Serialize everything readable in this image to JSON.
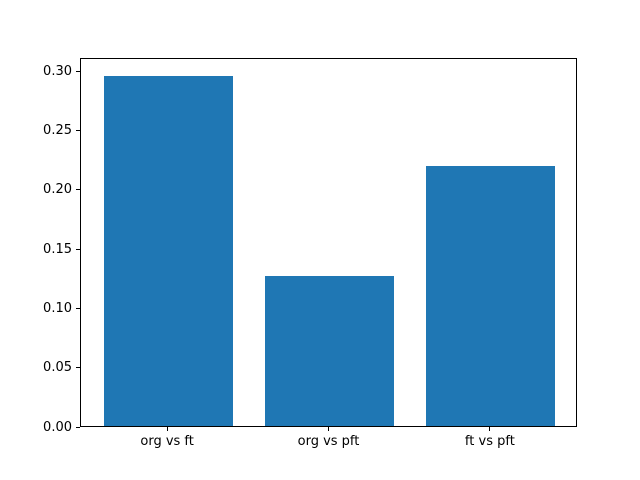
{
  "chart_data": {
    "type": "bar",
    "categories": [
      "org vs ft",
      "org vs pft",
      "ft vs pft"
    ],
    "values": [
      0.297,
      0.127,
      0.22
    ],
    "title": "",
    "xlabel": "",
    "ylabel": "",
    "ylim": [
      0,
      0.311
    ],
    "yticks": [
      0.0,
      0.05,
      0.1,
      0.15,
      0.2,
      0.25,
      0.3
    ],
    "ytick_labels": [
      "0.00",
      "0.05",
      "0.10",
      "0.15",
      "0.20",
      "0.25",
      "0.30"
    ],
    "bar_color": "#1f77b4",
    "spine_color": "#000000",
    "background_color": "#ffffff",
    "grid": false,
    "legend_position": "none"
  }
}
